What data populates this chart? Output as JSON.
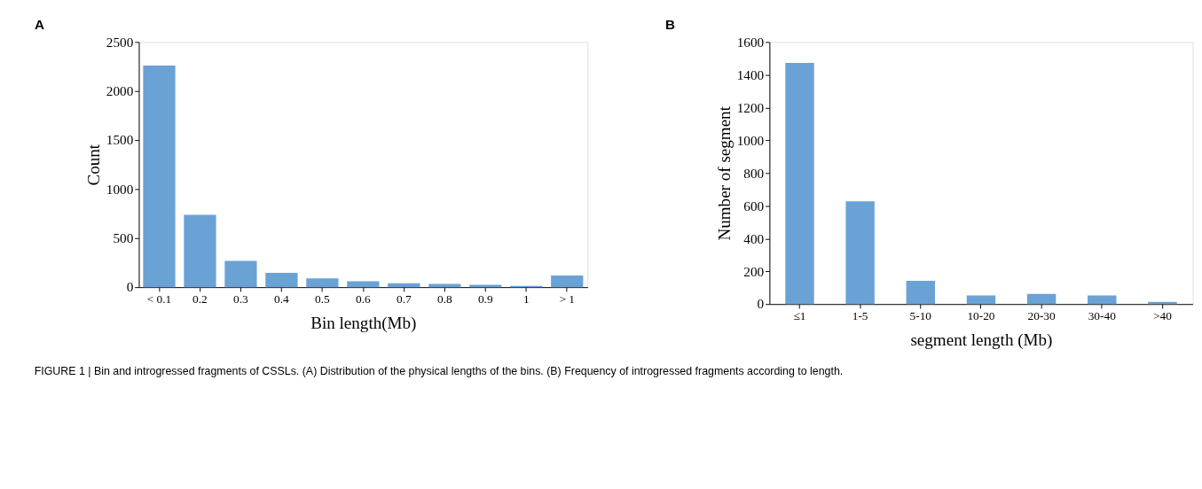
{
  "chart_data": [
    {
      "type": "bar",
      "title": "A",
      "xlabel": "Bin length(Mb)",
      "ylabel": "Count",
      "categories": [
        "< 0.1",
        "0.2",
        "0.3",
        "0.4",
        "0.5",
        "0.6",
        "0.7",
        "0.8",
        "0.9",
        "1",
        "> 1"
      ],
      "values": [
        2260,
        738,
        268,
        147,
        89,
        60,
        40,
        32,
        23,
        12,
        118
      ],
      "color": "#6aa2d6",
      "ylim": [
        0,
        2500
      ],
      "yticks": [
        0,
        500,
        1000,
        1500,
        2000,
        2500
      ],
      "annotations": [
        "FIGURE 1 | Bin and introgressed fragments of CSSLs. (A) Distribution of the physical lengths of the bins. (B) Frequency of introgressed fragments according to length."
      ]
    },
    {
      "type": "bar",
      "title": "B",
      "xlabel": "segment length (Mb)",
      "ylabel": "Number of segment",
      "categories": [
        "≤1",
        "1-5",
        "5-10",
        "10-20",
        "20-30",
        "30-40",
        ">40"
      ],
      "values": [
        1472,
        627,
        142,
        52,
        62,
        52,
        14
      ],
      "color": "#6aa2d6",
      "ylim": [
        0,
        1600
      ],
      "yticks": [
        0,
        200,
        400,
        600,
        800,
        1000,
        1200,
        1400,
        1600
      ]
    }
  ]
}
